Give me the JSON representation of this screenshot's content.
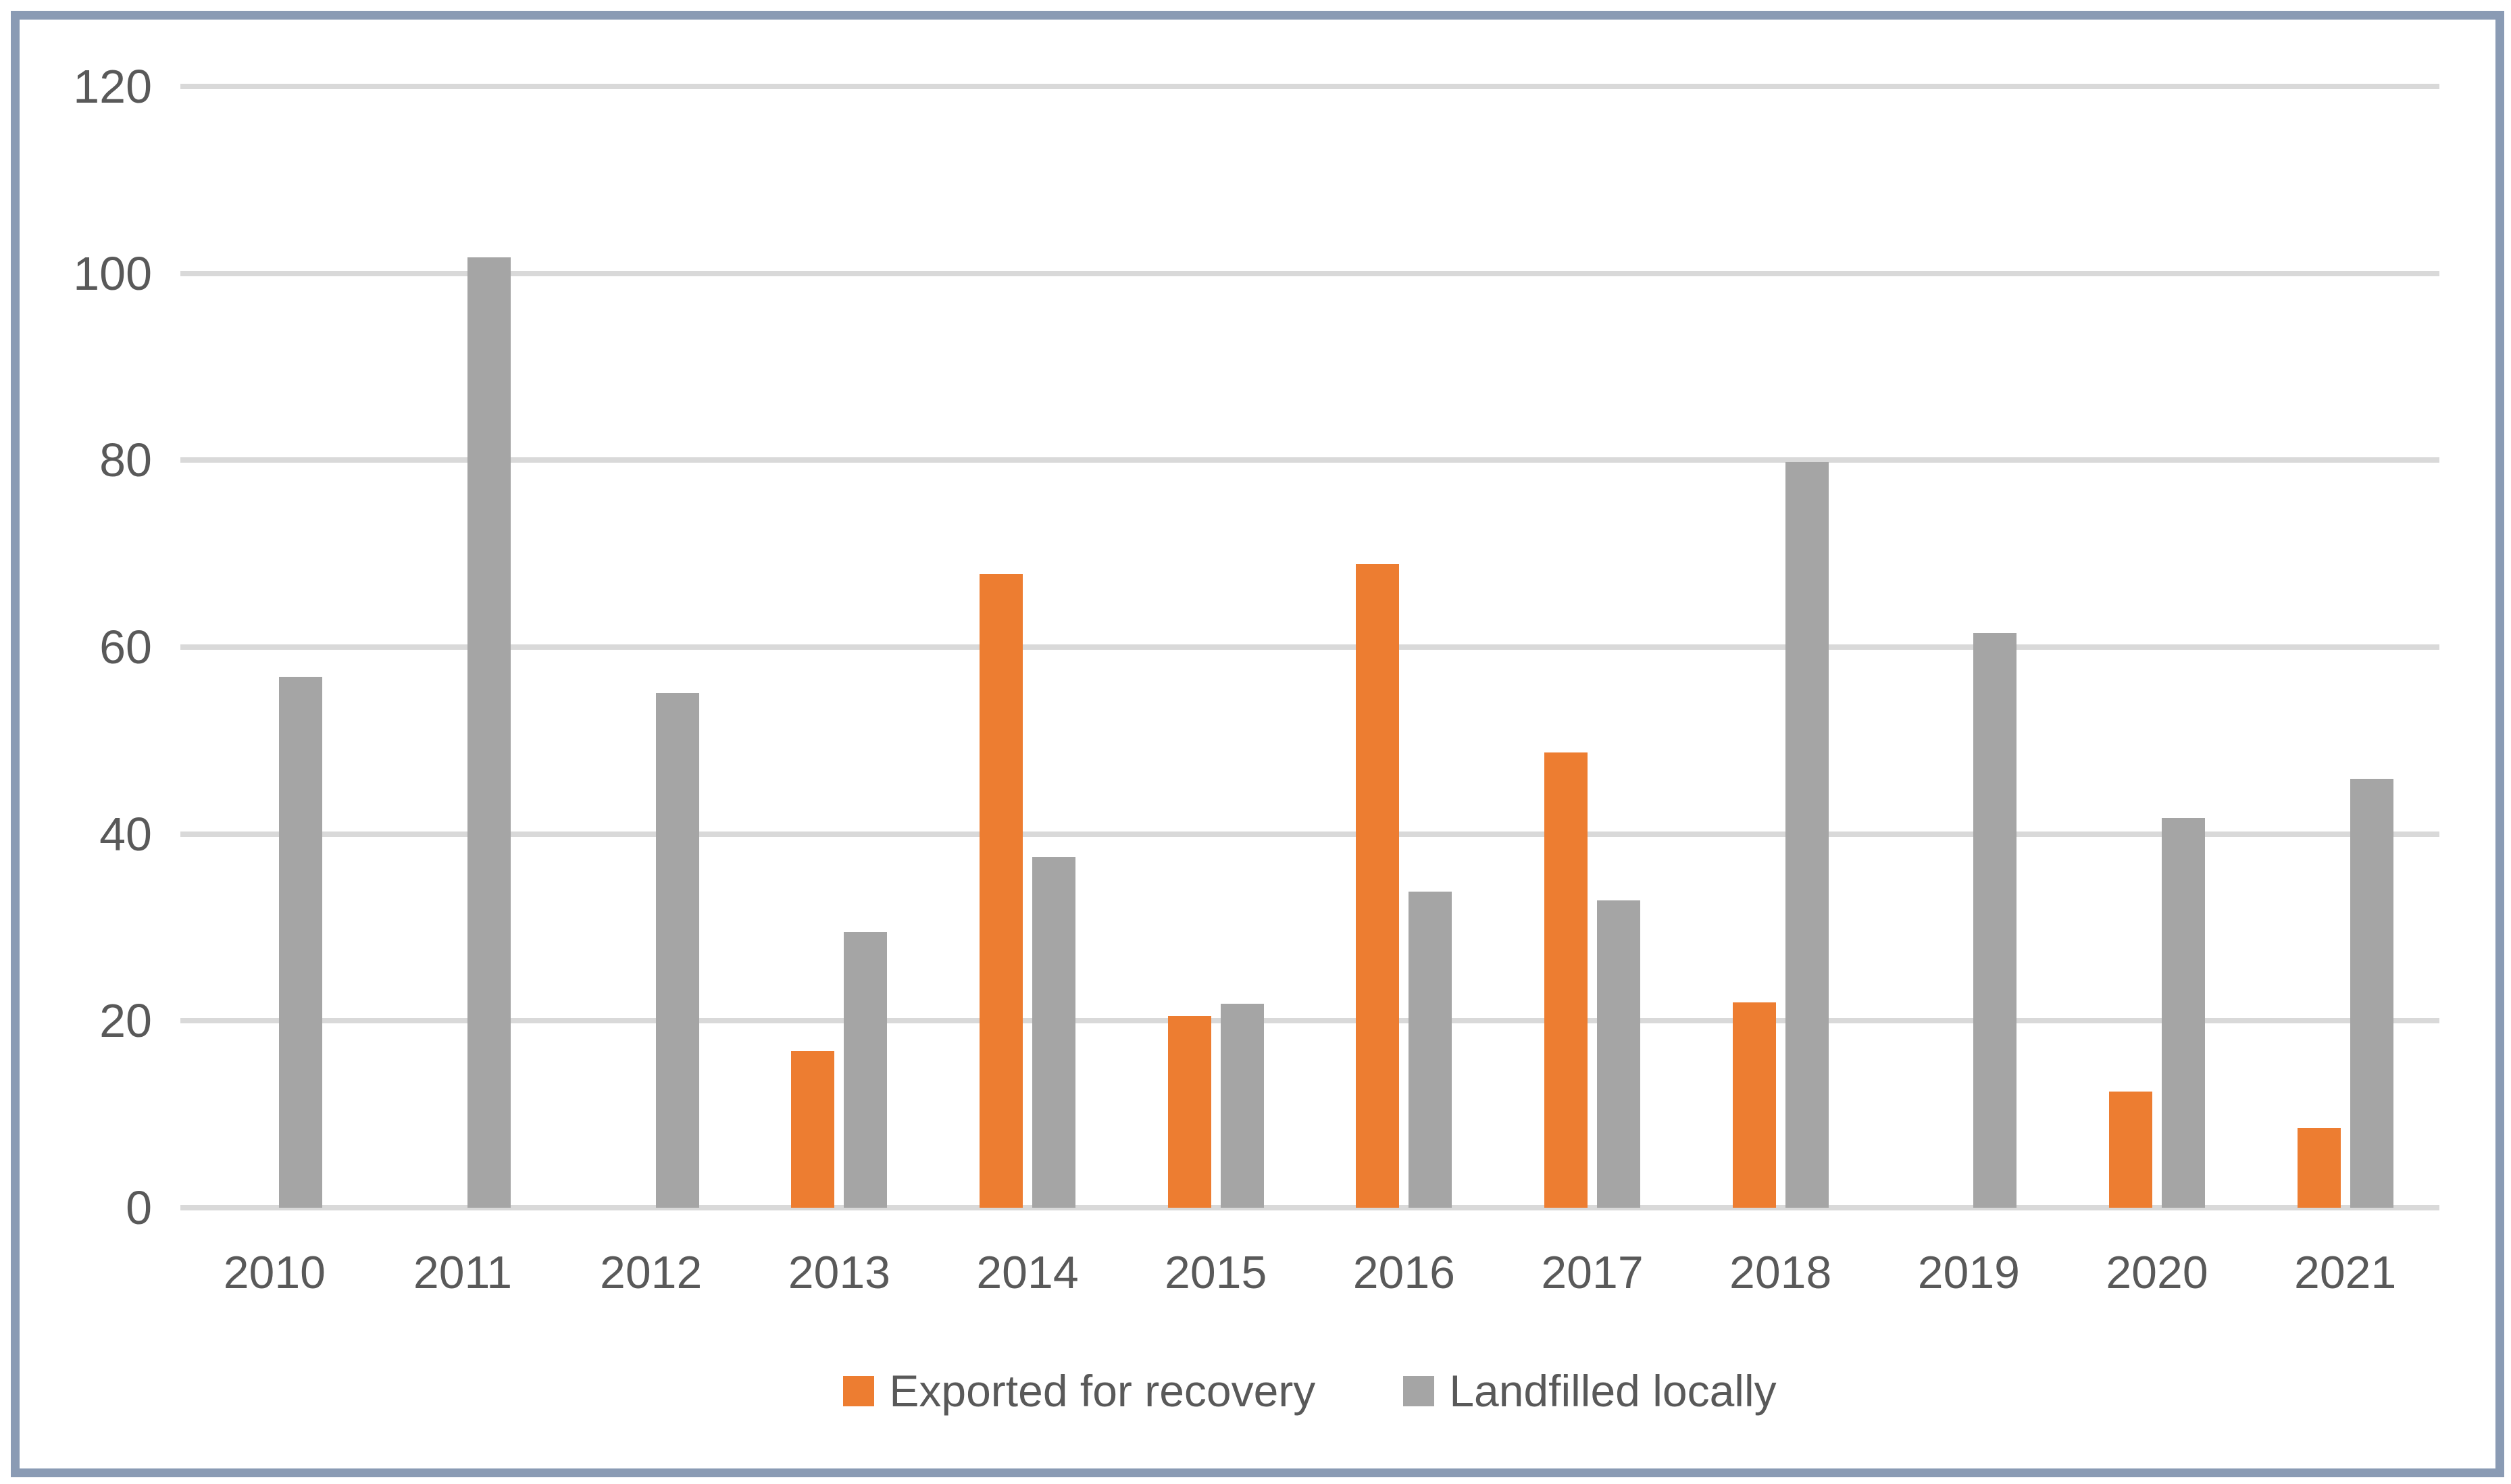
{
  "chart_data": {
    "type": "bar",
    "title": "",
    "xlabel": "",
    "ylabel": "",
    "categories": [
      "2010",
      "2011",
      "2012",
      "2013",
      "2014",
      "2015",
      "2016",
      "2017",
      "2018",
      "2019",
      "2020",
      "2021"
    ],
    "series": [
      {
        "name": "Exported for recovery",
        "color": "#ED7D31",
        "values": [
          null,
          null,
          null,
          16.8,
          67.8,
          20.5,
          68.9,
          48.7,
          22.0,
          null,
          12.4,
          8.5
        ]
      },
      {
        "name": "Landfilled locally",
        "color": "#A5A5A5",
        "values": [
          56.8,
          101.7,
          55.1,
          29.5,
          37.5,
          21.8,
          33.8,
          32.9,
          79.8,
          61.5,
          41.7,
          45.9
        ]
      }
    ],
    "y_axis": {
      "min": 0,
      "max": 120,
      "tick_interval": 20,
      "tick_labels": [
        "0",
        "20",
        "40",
        "60",
        "80",
        "100",
        "120"
      ]
    },
    "grid": true,
    "legend_position": "bottom",
    "gridline_color": "#D9D9D9",
    "axis_line_color": "#D9D9D9",
    "text_color": "#595959",
    "frame_color": "#8A9BB4"
  }
}
